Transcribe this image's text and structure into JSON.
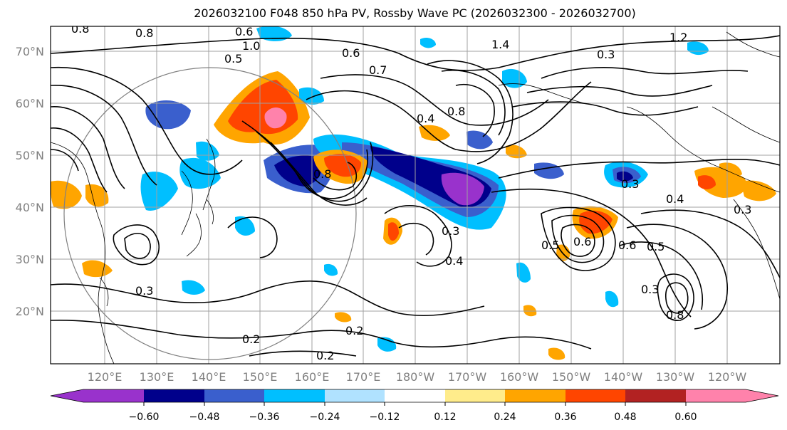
{
  "title": "2026032100 F048 850 hPa PV, Rossby Wave PC (2026032300 - 2026032700)",
  "lat_labels": [
    "70°N",
    "60°N",
    "50°N",
    "40°N",
    "30°N",
    "20°N"
  ],
  "lon_labels": [
    "120°E",
    "130°E",
    "140°E",
    "150°E",
    "160°E",
    "170°E",
    "180°W",
    "170°W",
    "160°W",
    "150°W",
    "140°W",
    "130°W",
    "120°W"
  ],
  "colorbar": {
    "colors": [
      "#9932cc",
      "#00008b",
      "#3a5fcd",
      "#00bfff",
      "#b0e2ff",
      "#ffffff",
      "#ffec8b",
      "#ffa500",
      "#ff4500",
      "#b22222",
      "#ff82ab"
    ],
    "tick_labels": [
      "−0.60",
      "−0.48",
      "−0.36",
      "−0.24",
      "−0.12",
      "0.12",
      "0.24",
      "0.36",
      "0.48",
      "0.60"
    ]
  },
  "contour_labels": [
    "0.8",
    "0.8",
    "1.0",
    "0.6",
    "1.4",
    "1.2",
    "0.5",
    "0.7",
    "0.6",
    "0.8",
    "0.4",
    "0.8",
    "0.3",
    "0.3",
    "0.4",
    "0.3",
    "0.6",
    "0.5",
    "0.6",
    "0.5",
    "0.4",
    "0.3",
    "0.2",
    "0.2",
    "0.2",
    "0.3",
    "0.3",
    "0.8"
  ]
}
